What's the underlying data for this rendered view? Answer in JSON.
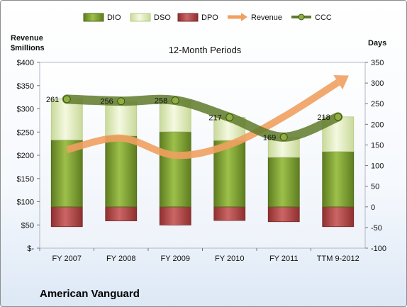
{
  "chart_data": {
    "type": "bar",
    "title": "12-Month Periods",
    "left_axis_label": "Revenue\n$millions",
    "right_axis_label": "Days",
    "company": "American Vanguard",
    "categories": [
      "FY 2007",
      "FY 2008",
      "FY 2009",
      "FY 2010",
      "FY 2011",
      "TTM 9-2012"
    ],
    "left_ylim": [
      0,
      400
    ],
    "left_ticks": [
      "$-",
      "$50",
      "$100",
      "$150",
      "$200",
      "$250",
      "$300",
      "$350",
      "$400"
    ],
    "right_ylim": [
      -100,
      350
    ],
    "right_ticks": [
      "-100",
      "-50",
      "0",
      "50",
      "100",
      "150",
      "200",
      "250",
      "300",
      "350"
    ],
    "series": [
      {
        "name": "DIO",
        "axis": "days",
        "values": [
          162,
          172,
          182,
          161,
          120,
          134
        ],
        "color": "#7a9a33"
      },
      {
        "name": "DSO",
        "axis": "days",
        "values": [
          100,
          82,
          76,
          56,
          49,
          84
        ],
        "color": "#e1ecbb"
      },
      {
        "name": "DPO",
        "axis": "days",
        "values": [
          -48,
          -34,
          -44,
          -33,
          -36,
          -48
        ],
        "color": "#b64b4b"
      },
      {
        "name": "Revenue",
        "axis": "revenue",
        "values": [
          212,
          237,
          200,
          223,
          283,
          357
        ],
        "color": "#f0a060"
      },
      {
        "name": "CCC",
        "axis": "days",
        "values": [
          261,
          256,
          258,
          217,
          169,
          218
        ],
        "color": "#5f7a2a"
      }
    ],
    "legend_position": "top",
    "grid": false
  }
}
